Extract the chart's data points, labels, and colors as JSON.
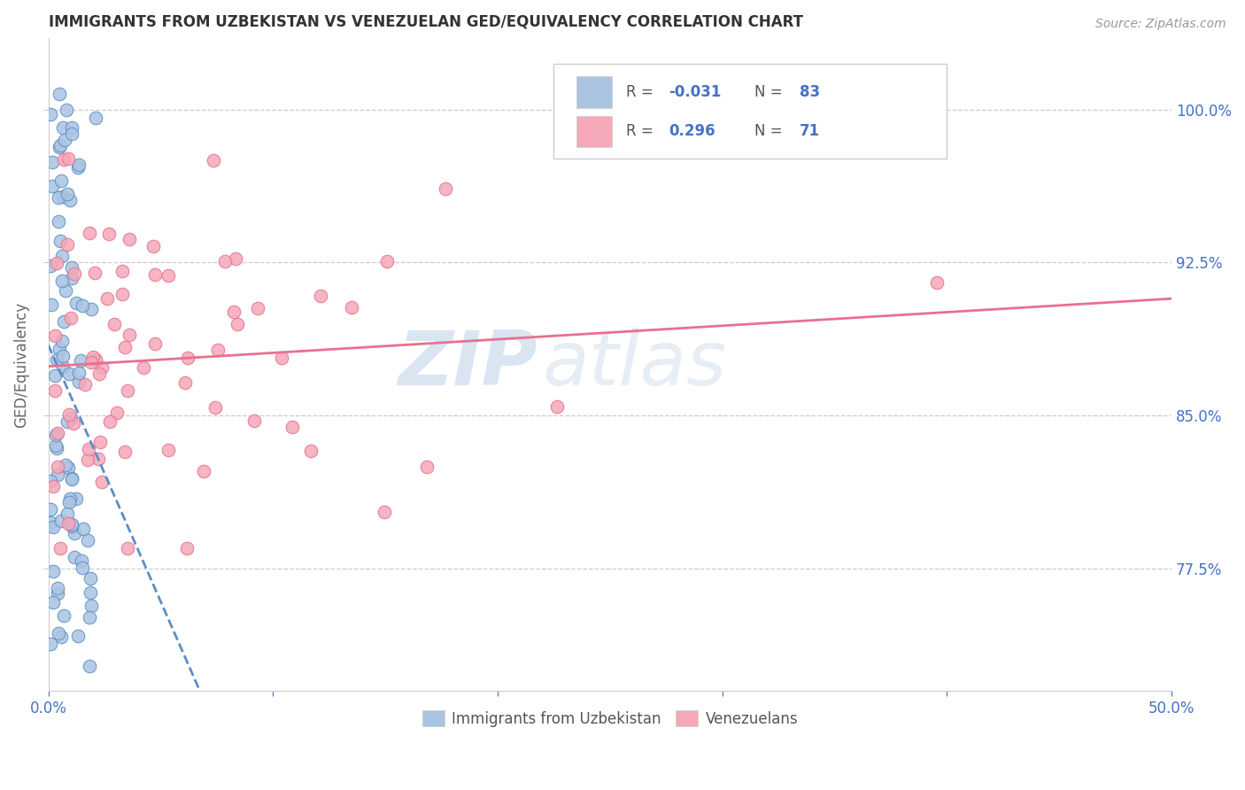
{
  "title": "IMMIGRANTS FROM UZBEKISTAN VS VENEZUELAN GED/EQUIVALENCY CORRELATION CHART",
  "source": "Source: ZipAtlas.com",
  "ylabel": "GED/Equivalency",
  "yticks": [
    "77.5%",
    "85.0%",
    "92.5%",
    "100.0%"
  ],
  "ytick_vals": [
    0.775,
    0.85,
    0.925,
    1.0
  ],
  "xlim": [
    0.0,
    0.5
  ],
  "ylim": [
    0.715,
    1.035
  ],
  "legend_label1": "Immigrants from Uzbekistan",
  "legend_label2": "Venezuelans",
  "R1": "-0.031",
  "N1": "83",
  "R2": "0.296",
  "N2": "71",
  "color_uzbek": "#aac4e2",
  "color_venez": "#f4a8b8",
  "color_uzbek_line": "#5b8ec4",
  "color_venez_line": "#e87090",
  "watermark_zip": "ZIP",
  "watermark_atlas": "atlas",
  "seed_uzbek": 42,
  "seed_venez": 77,
  "n_uzbek": 83,
  "n_venez": 71
}
